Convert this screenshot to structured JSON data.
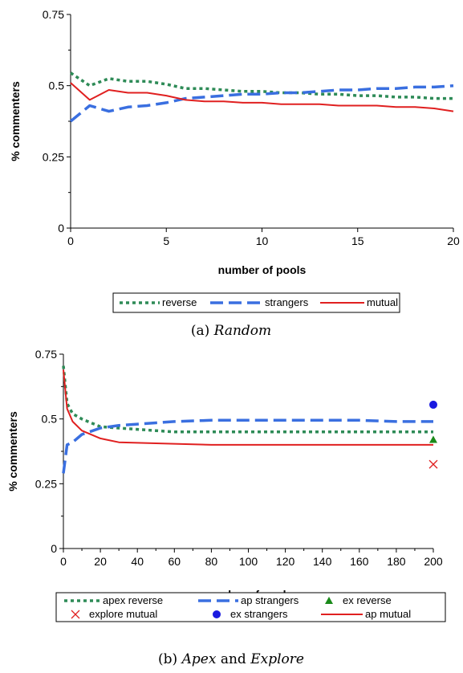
{
  "chart_data": [
    {
      "type": "line",
      "caption": {
        "prefix": "(a) ",
        "italic": "Random",
        "mid": "",
        "italic2": ""
      },
      "xlabel": "number of pools",
      "ylabel": "% commenters",
      "xlim": [
        0,
        20
      ],
      "ylim": [
        0,
        0.75
      ],
      "xticks": [
        0,
        5,
        10,
        15,
        20
      ],
      "yticks": [
        0,
        0.25,
        0.5,
        0.75
      ],
      "ytick_labels": [
        "0",
        "0.25",
        "0.5",
        "0.75"
      ],
      "legend_position": "bottom",
      "series": [
        {
          "name": "reverse",
          "style": "dotted",
          "color": "#2e8b57",
          "x": [
            0,
            1,
            2,
            3,
            4,
            5,
            6,
            7,
            8,
            9,
            10,
            11,
            12,
            13,
            14,
            15,
            16,
            17,
            18,
            19,
            20
          ],
          "y": [
            0.545,
            0.5,
            0.525,
            0.515,
            0.515,
            0.505,
            0.49,
            0.49,
            0.485,
            0.48,
            0.48,
            0.475,
            0.475,
            0.47,
            0.47,
            0.465,
            0.465,
            0.46,
            0.46,
            0.455,
            0.455
          ]
        },
        {
          "name": "strangers",
          "style": "dashed",
          "color": "#3a6fe0",
          "x": [
            0,
            1,
            2,
            3,
            4,
            5,
            6,
            7,
            8,
            9,
            10,
            11,
            12,
            13,
            14,
            15,
            16,
            17,
            18,
            19,
            20
          ],
          "y": [
            0.375,
            0.43,
            0.41,
            0.425,
            0.43,
            0.44,
            0.455,
            0.46,
            0.465,
            0.47,
            0.47,
            0.475,
            0.475,
            0.48,
            0.485,
            0.485,
            0.49,
            0.49,
            0.495,
            0.495,
            0.5
          ]
        },
        {
          "name": "mutual",
          "style": "solid",
          "color": "#e02020",
          "x": [
            0,
            1,
            2,
            3,
            4,
            5,
            6,
            7,
            8,
            9,
            10,
            11,
            12,
            13,
            14,
            15,
            16,
            17,
            18,
            19,
            20
          ],
          "y": [
            0.51,
            0.45,
            0.485,
            0.475,
            0.475,
            0.465,
            0.45,
            0.445,
            0.445,
            0.44,
            0.44,
            0.435,
            0.435,
            0.435,
            0.43,
            0.43,
            0.43,
            0.425,
            0.425,
            0.42,
            0.41
          ]
        }
      ]
    },
    {
      "type": "line",
      "caption": {
        "prefix": "(b) ",
        "italic": "Apex",
        "mid": " and ",
        "italic2": "Explore"
      },
      "xlabel": "number of pools",
      "ylabel": "% commenters",
      "xlim": [
        0,
        200
      ],
      "ylim": [
        0,
        0.75
      ],
      "xticks": [
        0,
        20,
        40,
        60,
        80,
        100,
        120,
        140,
        160,
        180,
        200
      ],
      "yticks": [
        0,
        0.25,
        0.5,
        0.75
      ],
      "ytick_labels": [
        "0",
        "0.25",
        "0.5",
        "0.75"
      ],
      "legend_position": "bottom",
      "series": [
        {
          "name": "apex reverse",
          "style": "dotted",
          "color": "#2e8b57",
          "x": [
            0,
            2,
            5,
            10,
            20,
            30,
            40,
            50,
            60,
            80,
            100,
            120,
            140,
            160,
            180,
            200
          ],
          "y": [
            0.705,
            0.56,
            0.52,
            0.5,
            0.47,
            0.465,
            0.46,
            0.455,
            0.45,
            0.45,
            0.45,
            0.45,
            0.45,
            0.45,
            0.45,
            0.45
          ]
        },
        {
          "name": "ap strangers",
          "style": "dashed",
          "color": "#3a6fe0",
          "x": [
            0,
            2,
            5,
            10,
            20,
            30,
            40,
            50,
            60,
            80,
            100,
            120,
            140,
            160,
            180,
            200
          ],
          "y": [
            0.29,
            0.4,
            0.41,
            0.44,
            0.465,
            0.475,
            0.48,
            0.485,
            0.49,
            0.495,
            0.495,
            0.495,
            0.495,
            0.495,
            0.49,
            0.49
          ]
        },
        {
          "name": "ap mutual",
          "style": "solid",
          "color": "#e02020",
          "x": [
            0,
            2,
            5,
            10,
            20,
            30,
            40,
            50,
            60,
            80,
            100,
            120,
            140,
            160,
            180,
            200
          ],
          "y": [
            0.69,
            0.54,
            0.49,
            0.455,
            0.425,
            0.41,
            0.408,
            0.406,
            0.404,
            0.4,
            0.4,
            0.4,
            0.4,
            0.4,
            0.4,
            0.4
          ]
        },
        {
          "name": "ex reverse",
          "style": "marker-triangle",
          "color": "#1a8a1a",
          "x": [
            200
          ],
          "y": [
            0.42
          ]
        },
        {
          "name": "explore mutual",
          "style": "marker-x",
          "color": "#e02020",
          "x": [
            200
          ],
          "y": [
            0.325
          ]
        },
        {
          "name": "ex strangers",
          "style": "marker-circle",
          "color": "#1a1ae0",
          "x": [
            200
          ],
          "y": [
            0.555
          ]
        }
      ],
      "legend_order": [
        "apex reverse",
        "ap strangers",
        "ex reverse",
        "explore mutual",
        "ex strangers",
        "ap mutual"
      ]
    }
  ]
}
